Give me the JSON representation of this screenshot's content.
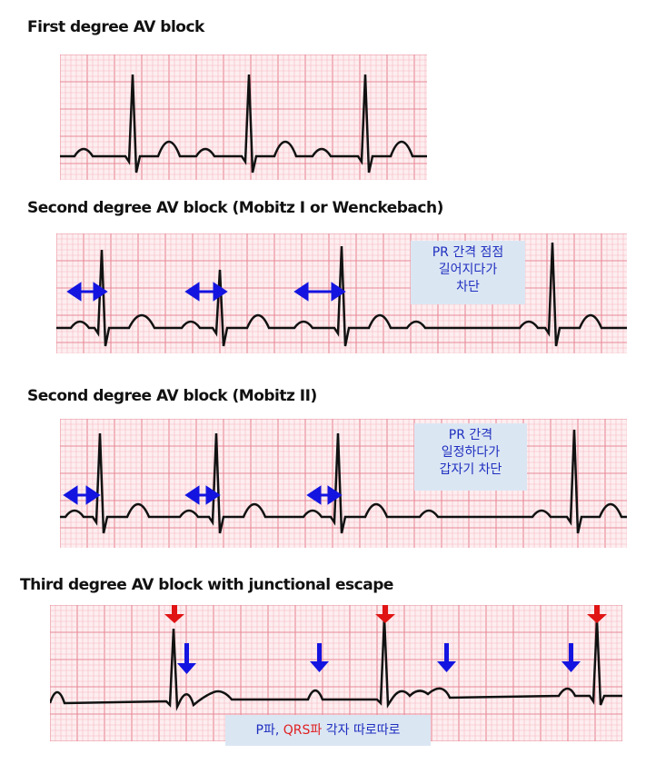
{
  "panels": [
    {
      "title": "First degree AV block",
      "note": []
    },
    {
      "title": "Second degree AV block (Mobitz I or Wenckebach)",
      "note": [
        "PR 간격 점점",
        "길어지다가",
        "차단"
      ]
    },
    {
      "title": "Second degree AV block (Mobitz II)",
      "note": [
        "PR 간격",
        "일정하다가",
        "갑자기 차단"
      ]
    },
    {
      "title": "Third degree AV block with junctional escape",
      "note_parts": {
        "p": "P파, ",
        "qrs": "QRS파",
        "rest": " 각자 따로따로"
      }
    }
  ],
  "colors": {
    "grid_minor": "#f6b8c0",
    "grid_major": "#e88a97",
    "grid_bg": "#fdeef0",
    "trace": "#111111",
    "p_arrow": "#1414e0",
    "qrs_arrow": "#e01414",
    "note_bg": "#dbe6f3"
  }
}
